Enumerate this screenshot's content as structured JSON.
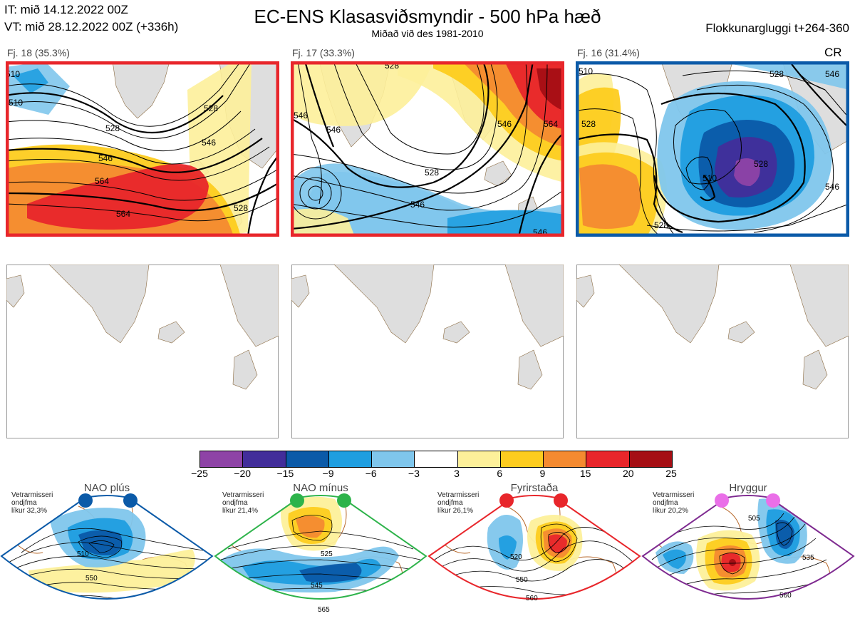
{
  "header": {
    "it_line": "IT: mið 14.12.2022 00Z",
    "vt_line": "VT: mið 28.12.2022 00Z  (+336h)",
    "title": "EC-ENS Klasasviðsmyndir - 500 hPa hæð",
    "subtitle": "Miðað við des 1981-2010",
    "window": "Flokkunargluggi t+264-360"
  },
  "colors": {
    "land": "#dedede",
    "coast": "#8a6a40",
    "nao_plus": "#0b5aa8",
    "nao_minus": "#2db34a",
    "blocking": "#e8262b",
    "ridge": "#7e2a90",
    "ridge_dot": "#ea6fe8"
  },
  "clusters": [
    {
      "label": "Fj. 18 (35.3%)",
      "frame_color": "#e8262b",
      "corner": "",
      "contours": [
        "510",
        "528",
        "546",
        "564",
        "546",
        "528",
        "564",
        "510",
        "528"
      ]
    },
    {
      "label": "Fj. 17 (33.3%)",
      "frame_color": "#e8262b",
      "corner": "",
      "contours": [
        "546",
        "528",
        "546",
        "546",
        "564",
        "528",
        "546",
        "546"
      ]
    },
    {
      "label": "Fj. 16 (31.4%)",
      "frame_color": "#0b5aa8",
      "corner": "CR",
      "contours": [
        "528",
        "510",
        "528",
        "546",
        "528",
        "546",
        "528",
        "510"
      ]
    }
  ],
  "legend": {
    "ticks": [
      "−25",
      "−20",
      "−15",
      "−9",
      "−6",
      "−3",
      "3",
      "6",
      "9",
      "15",
      "20",
      "25"
    ],
    "colors": [
      "#8e43a6",
      "#422d9a",
      "#0b5aa8",
      "#1f9ee0",
      "#7fc6ec",
      "#ffffff",
      "#fdf09a",
      "#fdcc1f",
      "#f48a30",
      "#e8262b",
      "#a50e14"
    ]
  },
  "regimes": [
    {
      "name": "NAO plús",
      "stat_lines": [
        "Vetrarmisseri",
        "ondjfma",
        "líkur 32,3%"
      ],
      "contour_labels": [
        "510",
        "550"
      ]
    },
    {
      "name": "NAO mínus",
      "stat_lines": [
        "Vetrarmisseri",
        "ondjfma",
        "líkur 21,4%"
      ],
      "contour_labels": [
        "525",
        "545",
        "565"
      ]
    },
    {
      "name": "Fyrirstaða",
      "stat_lines": [
        "Vetrarmisseri",
        "ondjfma",
        "líkur 26,1%"
      ],
      "contour_labels": [
        "520",
        "550",
        "560"
      ]
    },
    {
      "name": "Hryggur",
      "stat_lines": [
        "Vetrarmisseri",
        "ondjfma",
        "líkur 20,2%"
      ],
      "contour_labels": [
        "505",
        "535",
        "560"
      ]
    }
  ]
}
